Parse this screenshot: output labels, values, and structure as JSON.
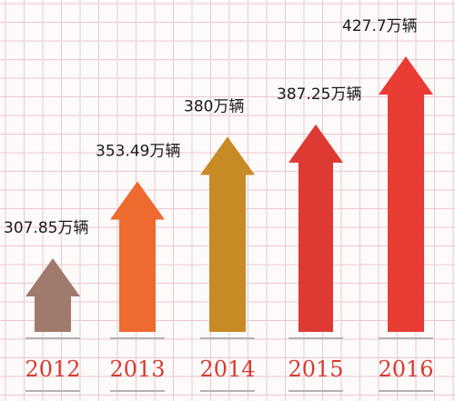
{
  "chart_data": {
    "type": "bar",
    "categories": [
      "2012",
      "2013",
      "2014",
      "2015",
      "2016"
    ],
    "values": [
      307.85,
      353.49,
      380,
      387.25,
      427.7
    ],
    "value_labels": [
      "307.85万辆",
      "353.49万辆",
      "380万辆",
      "387.25万辆",
      "427.7万辆"
    ],
    "unit": "万辆",
    "colors": [
      "#a07a6c",
      "#ee6a2e",
      "#c88a24",
      "#dc3a32",
      "#e93c34"
    ],
    "grid": true,
    "grid_color": "#ebc6cd",
    "year_color": "#d93a30"
  }
}
